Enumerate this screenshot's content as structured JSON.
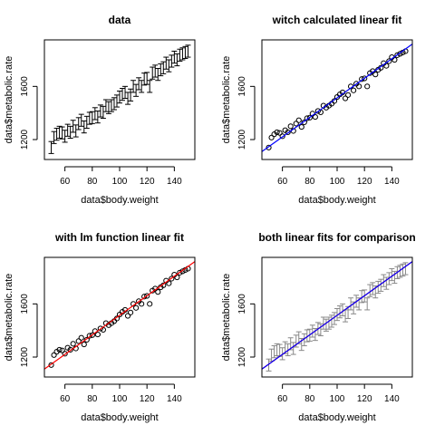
{
  "figure": {
    "background": "#ffffff"
  },
  "chart_data": [
    {
      "type": "errorbar",
      "title": "data",
      "xlabel": "data$body.weight",
      "ylabel": "data$metabolic.rate",
      "xlim": [
        45,
        155
      ],
      "ylim": [
        1050,
        1950
      ],
      "xticks": [
        "60",
        "80",
        "100",
        "120",
        "140"
      ],
      "yticks": [
        "1200",
        "1600"
      ],
      "fits": [],
      "points": "shared",
      "show_points": false,
      "show_errorbars": true,
      "errorbar_color": "#000000"
    },
    {
      "type": "scatter",
      "title": "witch calculated linear fit",
      "xlabel": "data$body.weight",
      "ylabel": "data$metabolic.rate",
      "xlim": [
        45,
        155
      ],
      "ylim": [
        1050,
        1950
      ],
      "xticks": [
        "60",
        "80",
        "100",
        "120",
        "140"
      ],
      "yticks": [
        "1200",
        "1600"
      ],
      "fits": [
        {
          "intercept": 779,
          "slope": 7.35,
          "color": "#0000ff"
        }
      ],
      "show_points": true,
      "show_errorbars": false
    },
    {
      "type": "scatter",
      "title": "with lm function linear fit",
      "xlabel": "data$body.weight",
      "ylabel": "data$metabolic.rate",
      "xlim": [
        45,
        155
      ],
      "ylim": [
        1050,
        1950
      ],
      "xticks": [
        "60",
        "80",
        "100",
        "120",
        "140"
      ],
      "yticks": [
        "1200",
        "1600"
      ],
      "fits": [
        {
          "intercept": 779,
          "slope": 7.35,
          "color": "#ff0000"
        }
      ],
      "show_points": true,
      "show_errorbars": false
    },
    {
      "type": "errorbar",
      "title": "both linear fits for comparison",
      "xlabel": "data$body.weight",
      "ylabel": "data$metabolic.rate",
      "xlim": [
        45,
        155
      ],
      "ylim": [
        1050,
        1950
      ],
      "xticks": [
        "60",
        "80",
        "100",
        "120",
        "140"
      ],
      "yticks": [
        "1200",
        "1600"
      ],
      "fits": [
        {
          "intercept": 779,
          "slope": 7.35,
          "color": "#ff0000"
        },
        {
          "intercept": 779,
          "slope": 7.35,
          "color": "#0000ff"
        }
      ],
      "show_points": false,
      "show_errorbars": true,
      "errorbar_color": "#888888"
    }
  ],
  "shared_points": {
    "x": [
      50,
      52,
      54,
      56,
      58,
      60,
      62,
      64,
      66,
      68,
      70,
      72,
      74,
      76,
      78,
      80,
      82,
      84,
      86,
      88,
      90,
      92,
      94,
      96,
      98,
      100,
      102,
      104,
      106,
      108,
      110,
      112,
      114,
      116,
      118,
      120,
      122,
      124,
      126,
      128,
      130,
      132,
      134,
      136,
      138,
      140,
      142,
      144,
      146,
      148,
      150
    ],
    "y": [
      1140,
      1215,
      1240,
      1255,
      1250,
      1225,
      1270,
      1255,
      1300,
      1265,
      1320,
      1345,
      1295,
      1330,
      1360,
      1365,
      1395,
      1370,
      1415,
      1405,
      1455,
      1440,
      1455,
      1470,
      1490,
      1520,
      1540,
      1555,
      1510,
      1535,
      1600,
      1570,
      1620,
      1600,
      1655,
      1660,
      1600,
      1700,
      1715,
      1690,
      1725,
      1740,
      1775,
      1755,
      1790,
      1820,
      1800,
      1835,
      1845,
      1855,
      1865
    ],
    "err": 45
  }
}
